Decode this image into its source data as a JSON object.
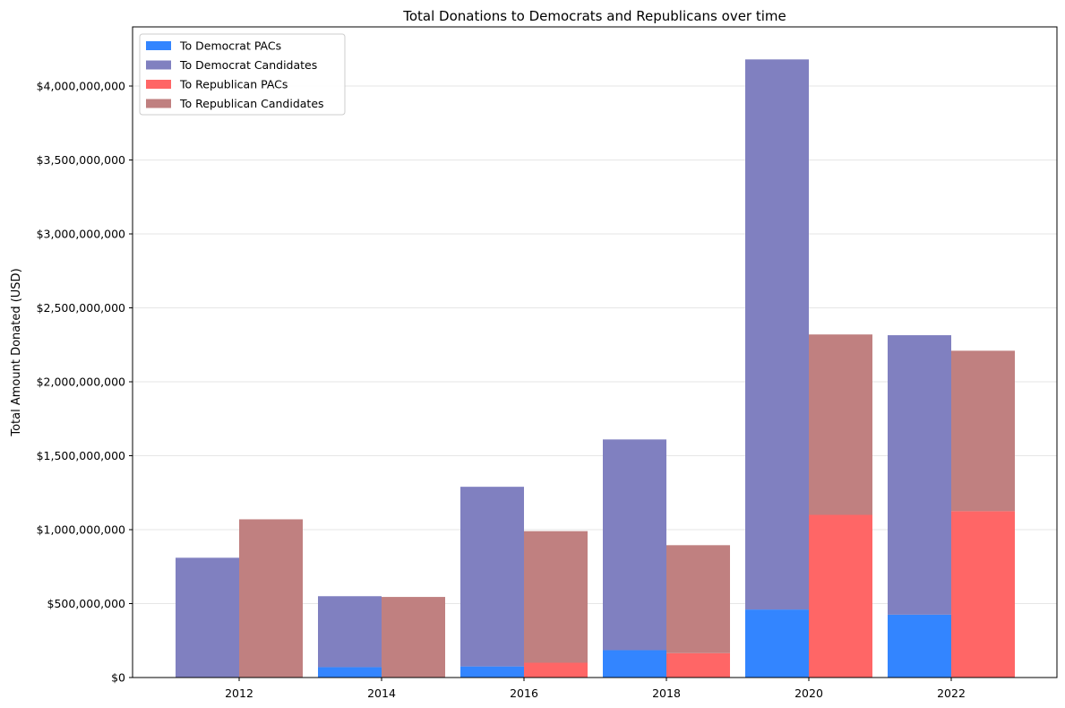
{
  "chart_data": {
    "type": "bar",
    "title": "Total Donations to Democrats and Republicans over time",
    "xlabel": "",
    "ylabel": "Total Amount Donated (USD)",
    "ylim": [
      0,
      4400000000
    ],
    "yticks": [
      0,
      500000000,
      1000000000,
      1500000000,
      2000000000,
      2500000000,
      3000000000,
      3500000000,
      4000000000
    ],
    "ytick_labels": [
      "$0",
      "$500,000,000",
      "$1,000,000,000",
      "$1,500,000,000",
      "$2,000,000,000",
      "$2,500,000,000",
      "$3,000,000,000",
      "$3,500,000,000",
      "$4,000,000,000"
    ],
    "categories": [
      "2012",
      "2014",
      "2016",
      "2018",
      "2020",
      "2022"
    ],
    "grid": "horizontal",
    "legend_position": "top-left",
    "series": [
      {
        "name": "To Democrat PACs",
        "color": "#3385ff",
        "values": [
          0,
          70000000,
          75000000,
          185000000,
          460000000,
          425000000
        ]
      },
      {
        "name": "To Democrat Candidates",
        "color": "#8080c0",
        "values": [
          810000000,
          480000000,
          1215000000,
          1425000000,
          3720000000,
          1890000000
        ]
      },
      {
        "name": "To Republican PACs",
        "color": "#ff6666",
        "values": [
          0,
          0,
          100000000,
          165000000,
          1100000000,
          1125000000
        ]
      },
      {
        "name": "To Republican Candidates",
        "color": "#c08080",
        "values": [
          1070000000,
          545000000,
          890000000,
          730000000,
          1220000000,
          1085000000
        ]
      }
    ]
  }
}
